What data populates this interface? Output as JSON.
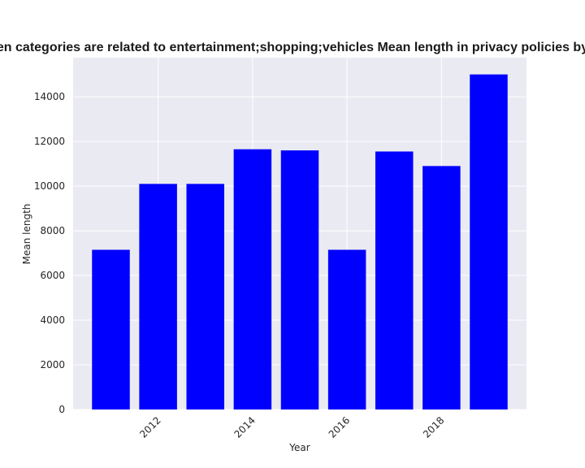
{
  "chart_data": {
    "type": "bar",
    "title": "en categories are related to entertainment;shopping;vehicles Mean length in privacy policies by",
    "xlabel": "Year",
    "ylabel": "Mean length",
    "x": [
      2011,
      2012,
      2013,
      2014,
      2015,
      2016,
      2017,
      2018,
      2019
    ],
    "values": [
      7150,
      10100,
      10100,
      11650,
      11600,
      7150,
      11550,
      10900,
      15000
    ],
    "bar_color": "#0000ff",
    "background": "#eaeaf2",
    "grid": true,
    "grid_color": "#ffffff",
    "xticks": [
      2012,
      2014,
      2016,
      2018
    ],
    "xtick_labels": [
      "2012",
      "2014",
      "2016",
      "2018"
    ],
    "yticks": [
      0,
      2000,
      4000,
      6000,
      8000,
      10000,
      12000,
      14000
    ],
    "ytick_labels": [
      "0",
      "2000",
      "4000",
      "6000",
      "8000",
      "10000",
      "12000",
      "14000"
    ],
    "xlim": [
      2010.2,
      2019.8
    ],
    "ylim": [
      0,
      15750
    ]
  }
}
